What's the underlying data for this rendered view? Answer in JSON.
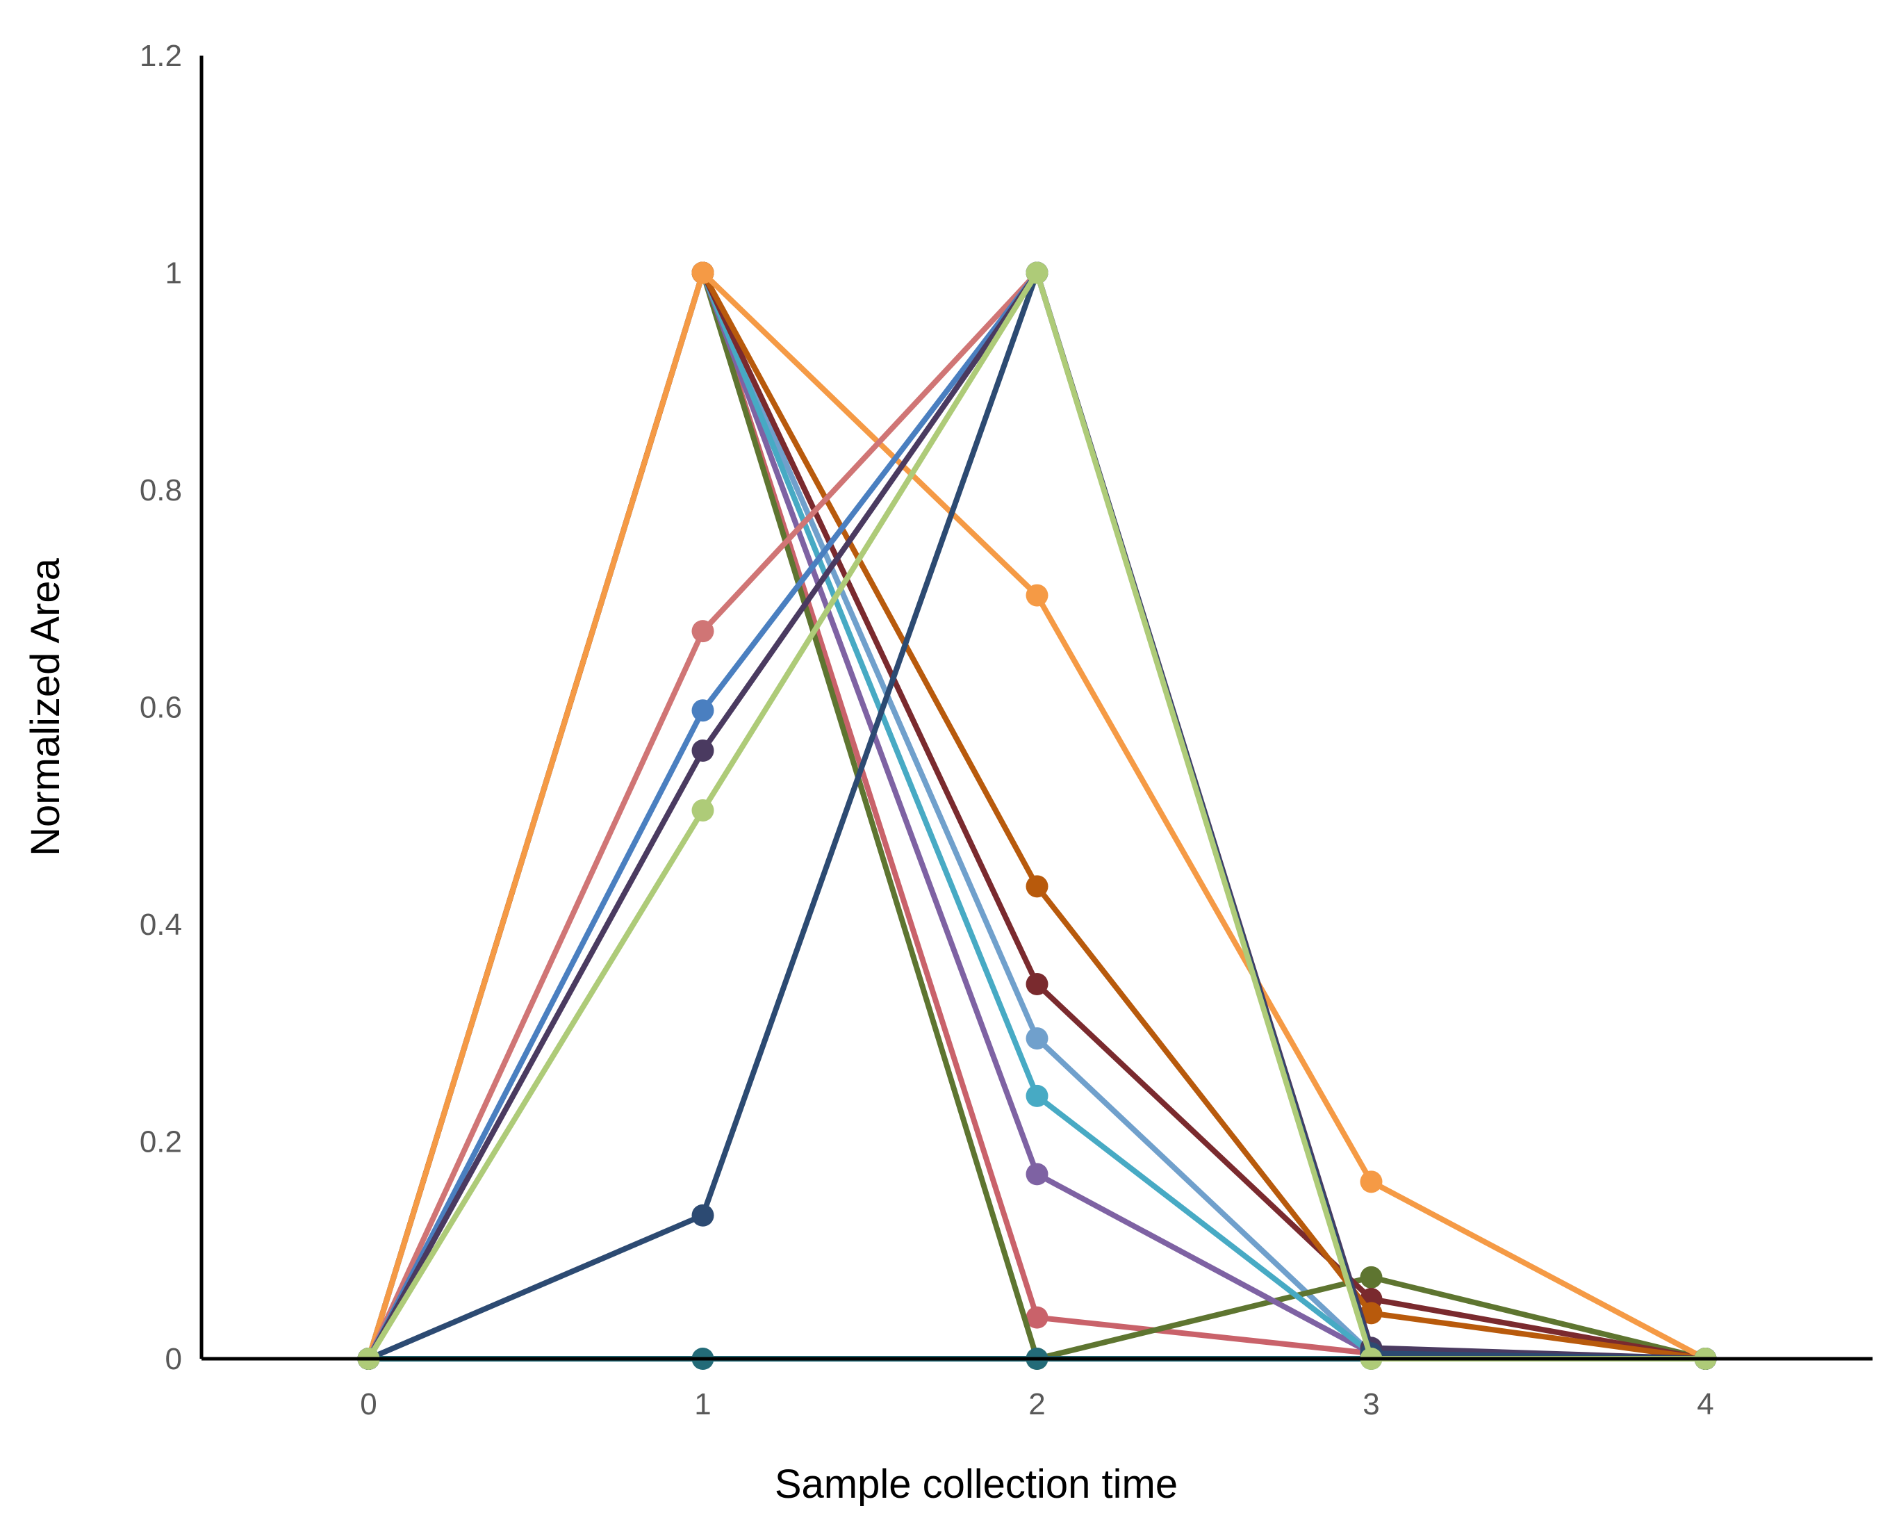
{
  "chart_data": {
    "type": "line",
    "title": "",
    "xlabel": "Sample collection time",
    "ylabel": "Normalized Area",
    "x": [
      0,
      1,
      2,
      3,
      4
    ],
    "xlim": [
      -0.5,
      4.5
    ],
    "ylim": [
      0,
      1.2
    ],
    "yticks": [
      "0",
      "0.2",
      "0.4",
      "0.6",
      "0.8",
      "1",
      "1.2"
    ],
    "xticks": [
      "0",
      "1",
      "2",
      "3",
      "4"
    ],
    "grid": false,
    "legend": "none",
    "series": [
      {
        "color": "#70a0cc",
        "values": [
          0,
          1,
          0.295,
          0.005,
          0
        ]
      },
      {
        "color": "#c9626a",
        "values": [
          0,
          1,
          0.038,
          0.005,
          0
        ]
      },
      {
        "color": "#5e7530",
        "values": [
          0,
          1,
          0.0,
          0.075,
          0
        ]
      },
      {
        "color": "#7e62a3",
        "values": [
          0,
          1,
          0.17,
          0.005,
          0
        ]
      },
      {
        "color": "#47aac4",
        "values": [
          0,
          1,
          0.242,
          0.005,
          0
        ]
      },
      {
        "color": "#7a2a2e",
        "values": [
          0,
          1,
          0.345,
          0.055,
          0
        ]
      },
      {
        "color": "#b85a0c",
        "values": [
          0,
          1,
          0.435,
          0.042,
          0
        ]
      },
      {
        "color": "#f59a45",
        "values": [
          0,
          1,
          0.703,
          0.163,
          0
        ]
      },
      {
        "color": "#d07575",
        "values": [
          0,
          0.67,
          1,
          0.005,
          0
        ]
      },
      {
        "color": "#4a7fc0",
        "values": [
          0,
          0.597,
          1,
          0.005,
          0
        ]
      },
      {
        "color": "#4a3a60",
        "values": [
          0,
          0.56,
          1,
          0.01,
          0
        ]
      },
      {
        "color": "#2c4a72",
        "values": [
          0,
          0.132,
          1,
          0.005,
          0
        ]
      },
      {
        "color": "#236b78",
        "values": [
          0,
          0,
          0,
          0,
          0
        ]
      },
      {
        "color": "#aecb78",
        "values": [
          0,
          0.505,
          1,
          0.0,
          0
        ]
      }
    ]
  }
}
